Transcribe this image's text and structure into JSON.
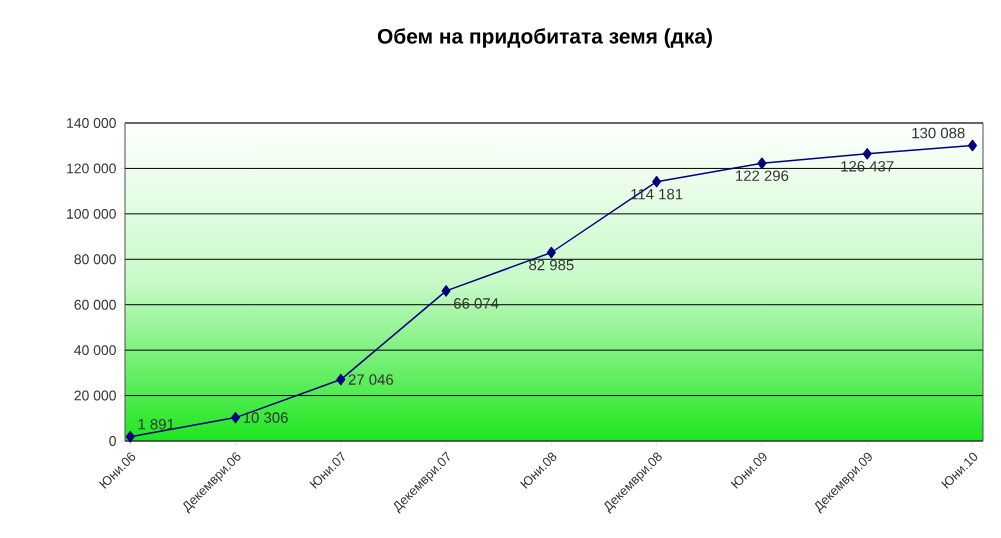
{
  "chart_data": {
    "type": "line",
    "title": "Обем на придобитата земя (дка)",
    "categories": [
      "Юни.06",
      "Декември.06",
      "Юни.07",
      "Декември.07",
      "Юни.08",
      "Декември.08",
      "Юни.09",
      "Декември.09",
      "Юни.10"
    ],
    "series": [
      {
        "color": "#000080",
        "values": [
          1891,
          10306,
          27046,
          66074,
          82985,
          114181,
          122296,
          126437,
          130088
        ],
        "value_labels": [
          "1 891",
          "10 306",
          "27 046",
          "66 074",
          "82 985",
          "114 181",
          "122 296",
          "126 437",
          "130 088"
        ]
      }
    ],
    "ylim": [
      0,
      140000
    ],
    "yticks": [
      {
        "value": 0,
        "label": "0"
      },
      {
        "value": 20000,
        "label": "20 000"
      },
      {
        "value": 40000,
        "label": "40 000"
      },
      {
        "value": 60000,
        "label": "60 000"
      },
      {
        "value": 80000,
        "label": "80 000"
      },
      {
        "value": 100000,
        "label": "100 000"
      },
      {
        "value": 120000,
        "label": "120 000"
      },
      {
        "value": 140000,
        "label": "140 000"
      }
    ],
    "grid": "y",
    "marker": "diamond",
    "line_style": "solid"
  }
}
